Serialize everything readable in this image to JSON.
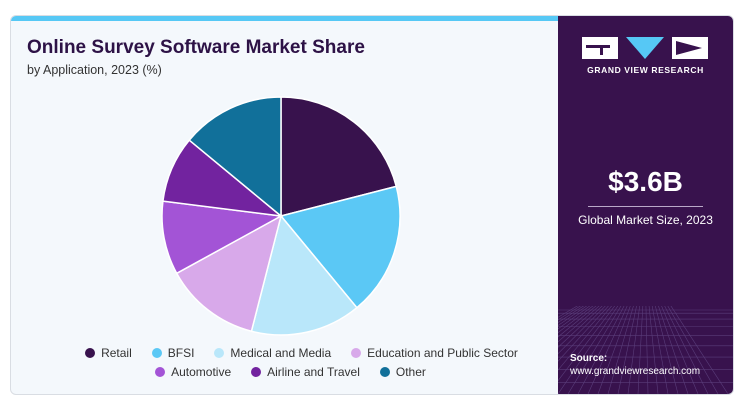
{
  "header": {
    "title": "Online Survey Software Market Share",
    "subtitle": "by Application, 2023 (%)"
  },
  "chart_data": {
    "type": "pie",
    "title": "Online Survey Software Market Share",
    "subtitle": "by Application, 2023 (%)",
    "categories": [
      "Retail",
      "BFSI",
      "Medical and Media",
      "Education and Public Sector",
      "Automotive",
      "Airline and Travel",
      "Other"
    ],
    "values": [
      21,
      18,
      15,
      13,
      10,
      9,
      14
    ],
    "colors": [
      "#38124d",
      "#5bc8f5",
      "#b9e7fa",
      "#d8a9ea",
      "#a354d6",
      "#72239f",
      "#11709a"
    ],
    "legend_position": "bottom"
  },
  "sidebar": {
    "brand": "GRAND VIEW RESEARCH",
    "market_value": "$3.6B",
    "market_caption": "Global Market Size, 2023",
    "source_label": "Source:",
    "source_url": "www.grandviewresearch.com",
    "colors": {
      "panel": "#38124d",
      "accent": "#56c8f5"
    }
  }
}
